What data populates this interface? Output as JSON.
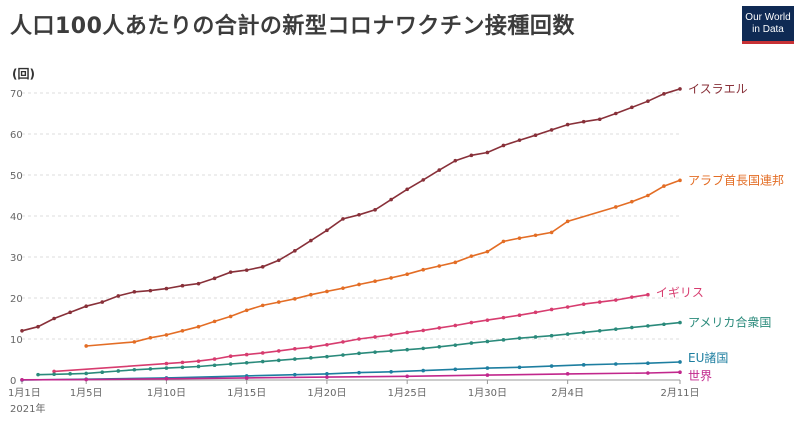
{
  "title": "人口100人あたりの合計の新型コロナワクチン接種回数",
  "logo": {
    "line1": "Our World",
    "line2": "in Data"
  },
  "chart_data": {
    "type": "line",
    "title": "人口100人あたりの合計の新型コロナワクチン接種回数",
    "ylabel": "(回)",
    "xlabel": "",
    "ylim": [
      0,
      70
    ],
    "yticks": [
      "0",
      "10",
      "20",
      "30",
      "40",
      "50",
      "60",
      "70"
    ],
    "xticks": [
      {
        "label": "1月1日",
        "day": 1
      },
      {
        "label": "1月5日",
        "day": 5
      },
      {
        "label": "1月10日",
        "day": 10
      },
      {
        "label": "1月15日",
        "day": 15
      },
      {
        "label": "1月20日",
        "day": 20
      },
      {
        "label": "1月25日",
        "day": 25
      },
      {
        "label": "1月30日",
        "day": 30
      },
      {
        "label": "2月4日",
        "day": 35
      },
      {
        "label": "2月11日",
        "day": 42
      }
    ],
    "xsub": "2021年",
    "grid": true,
    "series": [
      {
        "name": "イスラエル",
        "color": "#883039",
        "points": [
          [
            1,
            12
          ],
          [
            2,
            13
          ],
          [
            3,
            15
          ],
          [
            4,
            16.5
          ],
          [
            5,
            18
          ],
          [
            6,
            19
          ],
          [
            7,
            20.5
          ],
          [
            8,
            21.5
          ],
          [
            9,
            21.8
          ],
          [
            10,
            22.3
          ],
          [
            11,
            23
          ],
          [
            12,
            23.5
          ],
          [
            13,
            24.8
          ],
          [
            14,
            26.3
          ],
          [
            15,
            26.8
          ],
          [
            16,
            27.6
          ],
          [
            17,
            29.2
          ],
          [
            18,
            31.5
          ],
          [
            19,
            34
          ],
          [
            20,
            36.5
          ],
          [
            21,
            39.3
          ],
          [
            22,
            40.3
          ],
          [
            23,
            41.5
          ],
          [
            24,
            44
          ],
          [
            25,
            46.5
          ],
          [
            26,
            48.8
          ],
          [
            27,
            51.2
          ],
          [
            28,
            53.5
          ],
          [
            29,
            54.8
          ],
          [
            30,
            55.5
          ],
          [
            31,
            57.2
          ],
          [
            32,
            58.5
          ],
          [
            33,
            59.7
          ],
          [
            34,
            61
          ],
          [
            35,
            62.3
          ],
          [
            36,
            63
          ],
          [
            37,
            63.6
          ],
          [
            38,
            65
          ],
          [
            39,
            66.5
          ],
          [
            40,
            68
          ],
          [
            41,
            69.8
          ],
          [
            42,
            71
          ]
        ]
      },
      {
        "name": "アラブ首長国連邦",
        "color": "#e36d25",
        "points": [
          [
            5,
            8.3
          ],
          [
            8,
            9.3
          ],
          [
            9,
            10.3
          ],
          [
            10,
            11
          ],
          [
            11,
            12
          ],
          [
            12,
            13
          ],
          [
            13,
            14.3
          ],
          [
            14,
            15.5
          ],
          [
            15,
            17
          ],
          [
            16,
            18.2
          ],
          [
            17,
            19
          ],
          [
            18,
            19.8
          ],
          [
            19,
            20.8
          ],
          [
            20,
            21.6
          ],
          [
            21,
            22.4
          ],
          [
            22,
            23.3
          ],
          [
            23,
            24.1
          ],
          [
            24,
            24.9
          ],
          [
            25,
            25.8
          ],
          [
            26,
            26.9
          ],
          [
            27,
            27.8
          ],
          [
            28,
            28.7
          ],
          [
            29,
            30.2
          ],
          [
            30,
            31.3
          ],
          [
            31,
            33.8
          ],
          [
            32,
            34.6
          ],
          [
            33,
            35.3
          ],
          [
            34,
            36
          ],
          [
            35,
            38.7
          ],
          [
            38,
            42.2
          ],
          [
            39,
            43.5
          ],
          [
            40,
            45
          ],
          [
            41,
            47.3
          ],
          [
            42,
            48.7
          ]
        ]
      },
      {
        "name": "イギリス",
        "color": "#d73c6f",
        "points": [
          [
            3,
            2.1
          ],
          [
            10,
            4
          ],
          [
            11,
            4.3
          ],
          [
            12,
            4.6
          ],
          [
            13,
            5.1
          ],
          [
            14,
            5.8
          ],
          [
            15,
            6.2
          ],
          [
            16,
            6.6
          ],
          [
            17,
            7.1
          ],
          [
            18,
            7.6
          ],
          [
            19,
            8
          ],
          [
            20,
            8.6
          ],
          [
            21,
            9.3
          ],
          [
            22,
            10
          ],
          [
            23,
            10.5
          ],
          [
            24,
            11
          ],
          [
            25,
            11.6
          ],
          [
            26,
            12.1
          ],
          [
            27,
            12.7
          ],
          [
            28,
            13.3
          ],
          [
            29,
            14
          ],
          [
            30,
            14.6
          ],
          [
            31,
            15.2
          ],
          [
            32,
            15.8
          ],
          [
            33,
            16.5
          ],
          [
            34,
            17.2
          ],
          [
            35,
            17.8
          ],
          [
            36,
            18.5
          ],
          [
            37,
            19
          ],
          [
            38,
            19.5
          ],
          [
            39,
            20.2
          ],
          [
            40,
            20.8
          ]
        ]
      },
      {
        "name": "アメリカ合衆国",
        "color": "#2a8a7b",
        "points": [
          [
            2,
            1.3
          ],
          [
            3,
            1.4
          ],
          [
            4,
            1.5
          ],
          [
            5,
            1.6
          ],
          [
            6,
            1.9
          ],
          [
            7,
            2.2
          ],
          [
            8,
            2.5
          ],
          [
            9,
            2.7
          ],
          [
            10,
            2.9
          ],
          [
            11,
            3.1
          ],
          [
            12,
            3.3
          ],
          [
            13,
            3.6
          ],
          [
            14,
            3.9
          ],
          [
            15,
            4.2
          ],
          [
            16,
            4.5
          ],
          [
            17,
            4.8
          ],
          [
            18,
            5.1
          ],
          [
            19,
            5.4
          ],
          [
            20,
            5.7
          ],
          [
            21,
            6.1
          ],
          [
            22,
            6.5
          ],
          [
            23,
            6.8
          ],
          [
            24,
            7.1
          ],
          [
            25,
            7.4
          ],
          [
            26,
            7.7
          ],
          [
            27,
            8.1
          ],
          [
            28,
            8.5
          ],
          [
            29,
            9
          ],
          [
            30,
            9.4
          ],
          [
            31,
            9.8
          ],
          [
            32,
            10.2
          ],
          [
            33,
            10.5
          ],
          [
            34,
            10.8
          ],
          [
            35,
            11.2
          ],
          [
            36,
            11.6
          ],
          [
            37,
            12
          ],
          [
            38,
            12.4
          ],
          [
            39,
            12.8
          ],
          [
            40,
            13.2
          ],
          [
            41,
            13.6
          ],
          [
            42,
            14
          ]
        ]
      },
      {
        "name": "EU諸国",
        "color": "#1d7ea0",
        "points": [
          [
            1,
            0
          ],
          [
            5,
            0.2
          ],
          [
            10,
            0.5
          ],
          [
            15,
            1
          ],
          [
            18,
            1.3
          ],
          [
            20,
            1.5
          ],
          [
            22,
            1.8
          ],
          [
            24,
            2
          ],
          [
            26,
            2.3
          ],
          [
            28,
            2.6
          ],
          [
            30,
            2.9
          ],
          [
            32,
            3.1
          ],
          [
            34,
            3.4
          ],
          [
            36,
            3.7
          ],
          [
            38,
            3.9
          ],
          [
            40,
            4.1
          ],
          [
            42,
            4.4
          ]
        ]
      },
      {
        "name": "世界",
        "color": "#c1278c",
        "points": [
          [
            1,
            0.05
          ],
          [
            5,
            0.1
          ],
          [
            10,
            0.3
          ],
          [
            15,
            0.5
          ],
          [
            20,
            0.7
          ],
          [
            25,
            0.9
          ],
          [
            30,
            1.2
          ],
          [
            35,
            1.5
          ],
          [
            40,
            1.7
          ],
          [
            42,
            1.9
          ]
        ]
      }
    ]
  }
}
